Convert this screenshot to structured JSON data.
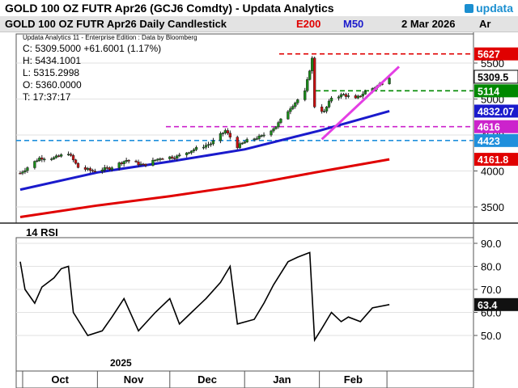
{
  "window": {
    "title": "GOLD 100 OZ FUTR  Apr26 (GCJ6 Comdty)  -  Updata Analytics",
    "logo": "updata"
  },
  "header": {
    "chart_title": "GOLD 100 OZ FUTR  Apr26 Daily Candlestick",
    "e200_label": "E200",
    "m50_label": "M50",
    "date": "2 Mar 2026",
    "ar_label": "Ar"
  },
  "info": {
    "edition": "Updata Analytics 11 - Enterprise Edition : Data by Bloomberg",
    "close": "C: 5309.5000  +61.6001 (1.17%)",
    "high": "H: 5434.1001",
    "low": "L: 5315.2998",
    "open": "O: 5360.0000",
    "time": "T: 17:37:17"
  },
  "rsi": {
    "label": "14 RSI",
    "value_tag": "63.4"
  },
  "xaxis": {
    "year": "2025",
    "months": [
      "Oct",
      "Nov",
      "Dec",
      "Jan",
      "Feb"
    ]
  },
  "colors": {
    "e200": "#e00000",
    "m50": "#1a1acc",
    "trend": "#e43ee4",
    "level_red": "#e00000",
    "level_green": "#008800",
    "level_magenta": "#cc22cc",
    "level_blue": "#1f8fdc",
    "bull": "#1a8c1a",
    "bear": "#cc1010"
  },
  "chart_data": [
    {
      "type": "candlestick",
      "title": "GOLD 100 OZ FUTR  Apr26 Daily Candlestick",
      "ylim": [
        3300,
        5800
      ],
      "yticks": [
        3500,
        4000,
        4500,
        5000,
        5500
      ],
      "ytick_labels": [
        "3500",
        "4000",
        "4500",
        "5000",
        "5500"
      ],
      "approx_close_path": [
        {
          "x": "2025-09-30",
          "y": 3970
        },
        {
          "x": "2025-10-08",
          "y": 4180
        },
        {
          "x": "2025-10-14",
          "y": 4180
        },
        {
          "x": "2025-10-20",
          "y": 4250
        },
        {
          "x": "2025-10-24",
          "y": 4050
        },
        {
          "x": "2025-10-30",
          "y": 4000
        },
        {
          "x": "2025-11-06",
          "y": 4040
        },
        {
          "x": "2025-11-13",
          "y": 4150
        },
        {
          "x": "2025-11-20",
          "y": 4080
        },
        {
          "x": "2025-11-27",
          "y": 4180
        },
        {
          "x": "2025-12-04",
          "y": 4200
        },
        {
          "x": "2025-12-11",
          "y": 4300
        },
        {
          "x": "2025-12-18",
          "y": 4380
        },
        {
          "x": "2025-12-24",
          "y": 4560
        },
        {
          "x": "2025-12-29",
          "y": 4340
        },
        {
          "x": "2026-01-02",
          "y": 4420
        },
        {
          "x": "2026-01-08",
          "y": 4480
        },
        {
          "x": "2026-01-14",
          "y": 4620
        },
        {
          "x": "2026-01-20",
          "y": 4880
        },
        {
          "x": "2026-01-26",
          "y": 5100
        },
        {
          "x": "2026-01-29",
          "y": 5560
        },
        {
          "x": "2026-01-30",
          "y": 4900
        },
        {
          "x": "2026-02-03",
          "y": 4820
        },
        {
          "x": "2026-02-06",
          "y": 5020
        },
        {
          "x": "2026-02-11",
          "y": 5060
        },
        {
          "x": "2026-02-16",
          "y": 5000
        },
        {
          "x": "2026-02-20",
          "y": 5100
        },
        {
          "x": "2026-02-25",
          "y": 5180
        },
        {
          "x": "2026-03-02",
          "y": 5309.5
        }
      ],
      "series": [
        {
          "name": "E200",
          "approx_values": [
            {
              "x": "2025-09-30",
              "y": 3360
            },
            {
              "x": "2025-11-01",
              "y": 3520
            },
            {
              "x": "2025-12-01",
              "y": 3650
            },
            {
              "x": "2026-01-01",
              "y": 3800
            },
            {
              "x": "2026-02-01",
              "y": 3990
            },
            {
              "x": "2026-03-02",
              "y": 4161.8
            }
          ]
        },
        {
          "name": "M50",
          "approx_values": [
            {
              "x": "2025-09-30",
              "y": 3740
            },
            {
              "x": "2025-11-01",
              "y": 3980
            },
            {
              "x": "2025-12-01",
              "y": 4130
            },
            {
              "x": "2026-01-01",
              "y": 4300
            },
            {
              "x": "2026-02-01",
              "y": 4560
            },
            {
              "x": "2026-03-02",
              "y": 4832.07
            }
          ]
        }
      ],
      "level_lines": [
        {
          "value": 5627,
          "label": "5627",
          "color": "level_red"
        },
        {
          "value": 5114,
          "label": "5114",
          "color": "level_green"
        },
        {
          "value": 4616,
          "label": "4616",
          "color": "level_magenta"
        },
        {
          "value": 4423,
          "label": "4423",
          "color": "level_blue"
        }
      ],
      "value_tags": [
        {
          "value": 5309.5,
          "label": "5309.5"
        },
        {
          "value": 4832.07,
          "label": "4832.07"
        },
        {
          "value": 4161.8,
          "label": "4161.8"
        }
      ],
      "trendline": {
        "from": {
          "x": "2026-02-02",
          "y": 4440
        },
        "to": {
          "x": "2026-03-06",
          "y": 5450
        }
      }
    },
    {
      "type": "line",
      "title": "14 RSI",
      "ylim": [
        40,
        92
      ],
      "yticks": [
        50,
        60,
        70,
        80,
        90
      ],
      "ytick_labels": [
        "50.0",
        "60.0",
        "70.0",
        "80.0",
        "90.0"
      ],
      "series": [
        {
          "name": "14 RSI",
          "approx_values": [
            {
              "x": "2025-09-30",
              "y": 82
            },
            {
              "x": "2025-10-02",
              "y": 70
            },
            {
              "x": "2025-10-06",
              "y": 64
            },
            {
              "x": "2025-10-09",
              "y": 71
            },
            {
              "x": "2025-10-14",
              "y": 75
            },
            {
              "x": "2025-10-17",
              "y": 79
            },
            {
              "x": "2025-10-20",
              "y": 80
            },
            {
              "x": "2025-10-22",
              "y": 60
            },
            {
              "x": "2025-10-28",
              "y": 50
            },
            {
              "x": "2025-11-03",
              "y": 52
            },
            {
              "x": "2025-11-07",
              "y": 58
            },
            {
              "x": "2025-11-12",
              "y": 66
            },
            {
              "x": "2025-11-18",
              "y": 52
            },
            {
              "x": "2025-11-25",
              "y": 60
            },
            {
              "x": "2025-12-01",
              "y": 66
            },
            {
              "x": "2025-12-05",
              "y": 55
            },
            {
              "x": "2025-12-10",
              "y": 60
            },
            {
              "x": "2025-12-16",
              "y": 66
            },
            {
              "x": "2025-12-22",
              "y": 73
            },
            {
              "x": "2025-12-26",
              "y": 80
            },
            {
              "x": "2025-12-29",
              "y": 55
            },
            {
              "x": "2026-01-05",
              "y": 57
            },
            {
              "x": "2026-01-09",
              "y": 64
            },
            {
              "x": "2026-01-13",
              "y": 72
            },
            {
              "x": "2026-01-19",
              "y": 82
            },
            {
              "x": "2026-01-23",
              "y": 84
            },
            {
              "x": "2026-01-28",
              "y": 86
            },
            {
              "x": "2026-01-30",
              "y": 48
            },
            {
              "x": "2026-02-02",
              "y": 53
            },
            {
              "x": "2026-02-06",
              "y": 60
            },
            {
              "x": "2026-02-10",
              "y": 56
            },
            {
              "x": "2026-02-13",
              "y": 58
            },
            {
              "x": "2026-02-18",
              "y": 56
            },
            {
              "x": "2026-02-23",
              "y": 62
            },
            {
              "x": "2026-03-02",
              "y": 63.4
            }
          ]
        }
      ]
    }
  ]
}
